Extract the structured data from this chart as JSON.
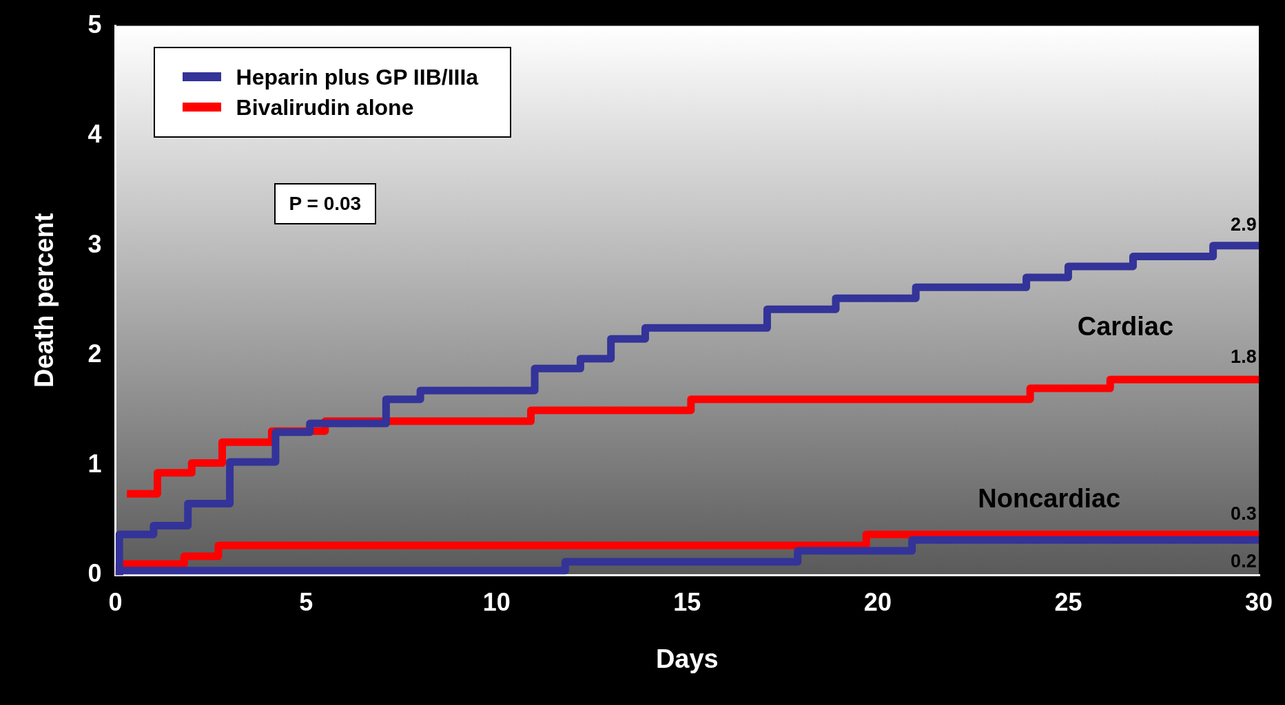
{
  "chart_data": {
    "type": "step",
    "xlabel": "Days",
    "ylabel": "Death percent",
    "xlim": [
      0,
      30
    ],
    "ylim": [
      0,
      5
    ],
    "xticks": [
      0,
      5,
      10,
      15,
      20,
      25,
      30
    ],
    "yticks": [
      0,
      1,
      2,
      3,
      4,
      5
    ],
    "grid": false,
    "legend": "top left",
    "marker": "none",
    "line_style": "solid",
    "series": [
      {
        "name": "Heparin plus GP IIB/IIIa",
        "color": "#333399",
        "x": [
          0,
          0.1,
          1,
          1.9,
          3,
          4.2,
          5.1,
          7.1,
          8,
          11,
          12.2,
          13,
          13.9,
          17.1,
          18.9,
          21,
          23.9,
          25,
          26.7,
          28.8,
          30
        ],
        "values": [
          0,
          0.37,
          0.45,
          0.65,
          1.03,
          1.3,
          1.38,
          1.6,
          1.68,
          1.88,
          1.97,
          2.15,
          2.25,
          2.42,
          2.52,
          2.62,
          2.71,
          2.81,
          2.9,
          3.0,
          3.0
        ]
      },
      {
        "name": "Bivalirudin alone",
        "color": "#ff0000",
        "x": [
          0.3,
          1.1,
          2,
          2.8,
          4.1,
          5.5,
          10.9,
          15.1,
          24,
          26.1,
          30
        ],
        "values": [
          0.74,
          0.93,
          1.02,
          1.21,
          1.31,
          1.4,
          1.5,
          1.6,
          1.7,
          1.78,
          1.78
        ]
      },
      {
        "color": "#333399",
        "x": [
          0,
          0.1,
          11.8,
          17.9,
          20.9,
          30
        ],
        "values": [
          0,
          0.04,
          0.12,
          0.22,
          0.32,
          0.32
        ]
      },
      {
        "color": "#ff0000",
        "x": [
          0,
          0.1,
          1.8,
          2.7,
          19.7,
          30
        ],
        "values": [
          0,
          0.1,
          0.17,
          0.27,
          0.37,
          0.37
        ]
      }
    ],
    "annotations": [
      "P = 0.03",
      "Cardiac",
      "Noncardiac",
      "2.9",
      "1.8",
      "0.3",
      "0.2"
    ]
  }
}
